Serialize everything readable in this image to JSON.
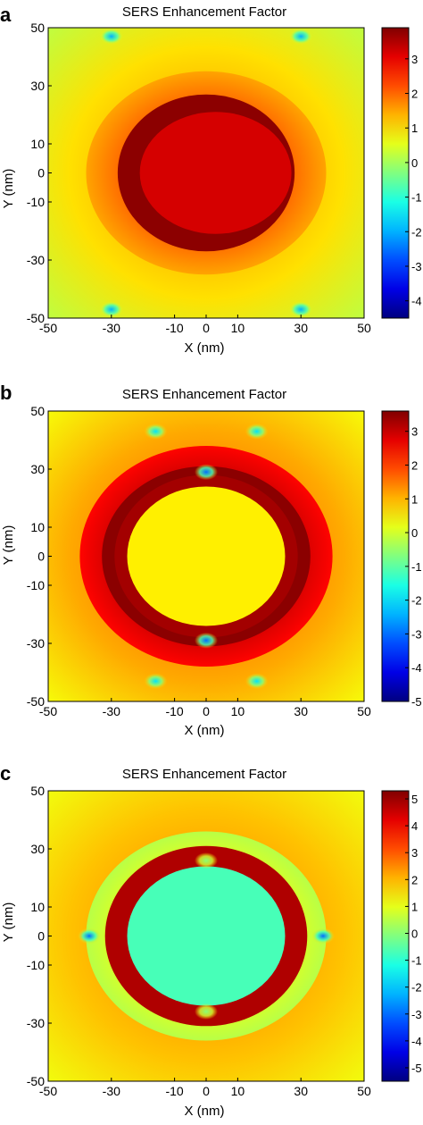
{
  "chart_data": [
    {
      "panel_label": "a",
      "type": "heatmap",
      "title": "SERS Enhancement Factor",
      "xlabel": "X (nm)",
      "ylabel": "Y (nm)",
      "xlim": [
        -50,
        50
      ],
      "ylim": [
        -50,
        50
      ],
      "x_ticks": [
        "-50",
        "-30",
        "-10",
        "0",
        "10",
        "30",
        "50"
      ],
      "y_ticks": [
        "50",
        "30",
        "10",
        "0",
        "-10",
        "-30",
        "-50"
      ],
      "colorbar": {
        "range": [
          -4.5,
          3.9
        ],
        "ticks": [
          "3",
          "2",
          "1",
          "0",
          "-1",
          "-2",
          "-3",
          "-4"
        ]
      },
      "features": {
        "background_value": 0.6,
        "core": {
          "shape": "ellipse",
          "semi_axes_nm": [
            24,
            21
          ],
          "value": 3.2
        },
        "hot_ring": {
          "semi_axes_nm": [
            25,
            27
          ],
          "value": 3.8
        },
        "outer_ring": {
          "semi_axes_nm": [
            38,
            35
          ],
          "value": 2.0
        },
        "minima": [
          {
            "x": -30,
            "y": 47,
            "value": -2
          },
          {
            "x": 30,
            "y": 47,
            "value": -2
          },
          {
            "x": -30,
            "y": -47,
            "value": -2
          },
          {
            "x": 30,
            "y": -47,
            "value": -2
          }
        ]
      }
    },
    {
      "panel_label": "b",
      "type": "heatmap",
      "title": "SERS Enhancement Factor",
      "xlabel": "X (nm)",
      "ylabel": "Y (nm)",
      "xlim": [
        -50,
        50
      ],
      "ylim": [
        -50,
        50
      ],
      "x_ticks": [
        "-50",
        "-30",
        "-10",
        "0",
        "10",
        "30",
        "50"
      ],
      "y_ticks": [
        "50",
        "30",
        "10",
        "0",
        "-10",
        "-30",
        "-50"
      ],
      "colorbar": {
        "range": [
          -5,
          3.6
        ],
        "ticks": [
          "3",
          "2",
          "1",
          "0",
          "-1",
          "-2",
          "-3",
          "-4",
          "-5"
        ]
      },
      "features": {
        "background_value": 0.7,
        "core": {
          "shape": "ellipse",
          "semi_axes_nm": [
            25,
            24
          ],
          "value": 0.5
        },
        "inner_ring": {
          "semi_axes_nm": [
            33,
            31
          ],
          "value": 3.5
        },
        "outer_ring": {
          "semi_axes_nm": [
            40,
            38
          ],
          "value": 3.0
        },
        "minima": [
          {
            "x": -16,
            "y": 43,
            "value": -2
          },
          {
            "x": 16,
            "y": 43,
            "value": -2
          },
          {
            "x": 0,
            "y": 29,
            "value": -3
          },
          {
            "x": 0,
            "y": -29,
            "value": -3
          },
          {
            "x": -16,
            "y": -43,
            "value": -2
          },
          {
            "x": 16,
            "y": -43,
            "value": -2
          }
        ]
      }
    },
    {
      "panel_label": "c",
      "type": "heatmap",
      "title": "SERS Enhancement Factor",
      "xlabel": "X (nm)",
      "ylabel": "Y (nm)",
      "xlim": [
        -50,
        50
      ],
      "ylim": [
        -50,
        50
      ],
      "x_ticks": [
        "-50",
        "-30",
        "-10",
        "0",
        "10",
        "30",
        "50"
      ],
      "y_ticks": [
        "50",
        "30",
        "10",
        "0",
        "-10",
        "-30",
        "-50"
      ],
      "colorbar": {
        "range": [
          -5.5,
          5.3
        ],
        "ticks": [
          "5",
          "4",
          "3",
          "2",
          "1",
          "0",
          "-1",
          "-2",
          "-3",
          "-4",
          "-5"
        ]
      },
      "features": {
        "background_value": 1.5,
        "core": {
          "shape": "ellipse",
          "semi_axes_nm": [
            25,
            24
          ],
          "value": -0.7
        },
        "hot_ring": {
          "semi_axes_nm": [
            32,
            31
          ],
          "value": 4.8
        },
        "outer_ring": {
          "semi_axes_nm": [
            38,
            36
          ],
          "value": 1.0
        },
        "minima": [
          {
            "x": -37,
            "y": 0,
            "value": -3
          },
          {
            "x": 37,
            "y": 0,
            "value": -3
          },
          {
            "x": 0,
            "y": 26,
            "value": 0
          },
          {
            "x": 0,
            "y": -26,
            "value": 0
          }
        ]
      }
    }
  ]
}
